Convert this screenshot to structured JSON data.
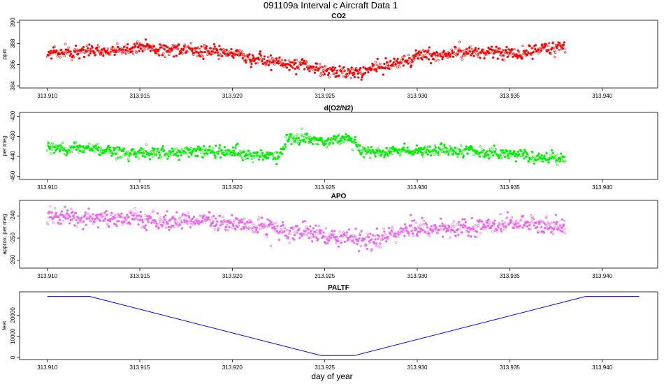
{
  "title": "091109a   Interval c Aircraft Data 1",
  "xlabel": "day of year",
  "chart_data": [
    {
      "type": "scatter",
      "title": "CO2",
      "ylabel": "ppm",
      "xlim": [
        313.9085,
        313.943
      ],
      "ylim": [
        383.8,
        390.2
      ],
      "xticks": [
        313.91,
        313.915,
        313.92,
        313.925,
        313.93,
        313.935,
        313.94
      ],
      "xtick_labels": [
        "313.910",
        "313.915",
        "313.920",
        "313.925",
        "313.930",
        "313.935",
        "313.940"
      ],
      "yticks": [
        384,
        386,
        388,
        390
      ],
      "ytick_labels": [
        "384",
        "386",
        "388",
        "390"
      ],
      "color": "#ff0000",
      "series": [
        {
          "x_range": [
            313.91,
            313.938
          ],
          "n_points": 1000,
          "trend_x": [
            313.91,
            313.913,
            313.9155,
            313.918,
            313.92,
            313.922,
            313.9245,
            313.9265,
            313.928,
            313.93,
            313.932,
            313.9355,
            313.938
          ],
          "trend_y": [
            387.0,
            387.3,
            387.6,
            387.3,
            387.0,
            386.4,
            385.5,
            385.3,
            385.7,
            386.8,
            387.2,
            387.1,
            387.6
          ],
          "scatter": 0.45
        }
      ]
    },
    {
      "type": "scatter",
      "title": "d(O2/N2)",
      "ylabel": "per meg",
      "xlim": [
        313.9085,
        313.943
      ],
      "ylim": [
        -451.5,
        -418
      ],
      "xticks": [
        313.91,
        313.915,
        313.92,
        313.925,
        313.93,
        313.935,
        313.94
      ],
      "xtick_labels": [
        "313.910",
        "313.915",
        "313.920",
        "313.925",
        "313.930",
        "313.935",
        "313.940"
      ],
      "yticks": [
        -450,
        -440,
        -430,
        -420
      ],
      "ytick_labels": [
        "-450",
        "-440",
        "-430",
        "-420"
      ],
      "color": "#00ee00",
      "series": [
        {
          "x_range": [
            313.91,
            313.938
          ],
          "n_points": 1000,
          "trend_x": [
            313.91,
            313.913,
            313.9155,
            313.918,
            313.921,
            313.9225,
            313.923,
            313.925,
            313.9265,
            313.927,
            313.93,
            313.9335,
            313.936,
            313.938
          ],
          "trend_y": [
            -435,
            -437,
            -439,
            -437,
            -439,
            -440,
            -431,
            -432,
            -431,
            -438,
            -437,
            -438,
            -440,
            -442
          ],
          "scatter": 2.2
        }
      ]
    },
    {
      "type": "scatter",
      "title": "APO",
      "ylabel": "approx. per meg",
      "xlim": [
        313.9085,
        313.943
      ],
      "ylim": [
        -263.5,
        -233
      ],
      "xticks": [
        313.91,
        313.915,
        313.92,
        313.925,
        313.93,
        313.935,
        313.94
      ],
      "xtick_labels": [
        "313.910",
        "313.915",
        "313.920",
        "313.925",
        "313.930",
        "313.935",
        "313.940"
      ],
      "yticks": [
        -260,
        -250,
        -240
      ],
      "ytick_labels": [
        "-260",
        "-250",
        "-240"
      ],
      "color": "#ee66ee",
      "series": [
        {
          "x_range": [
            313.91,
            313.938
          ],
          "n_points": 1000,
          "trend_x": [
            313.91,
            313.913,
            313.917,
            313.92,
            313.923,
            313.9255,
            313.9275,
            313.93,
            313.933,
            313.935,
            313.938
          ],
          "trend_y": [
            -240,
            -241,
            -242,
            -243,
            -246,
            -249,
            -252,
            -245,
            -245,
            -243,
            -245
          ],
          "scatter": 3.0
        }
      ]
    },
    {
      "type": "line",
      "title": "PALTF",
      "ylabel": "feet",
      "xlim": [
        313.9085,
        313.943
      ],
      "ylim": [
        -1000,
        31000
      ],
      "xticks": [
        313.91,
        313.915,
        313.92,
        313.925,
        313.93,
        313.935,
        313.94
      ],
      "xtick_labels": [
        "313.910",
        "313.915",
        "313.920",
        "313.925",
        "313.930",
        "313.935",
        "313.940"
      ],
      "yticks": [
        0,
        10000,
        20000
      ],
      "ytick_labels": [
        "0",
        "10000",
        "20000"
      ],
      "color": "#0000ff",
      "series": [
        {
          "x": [
            313.91,
            313.9123,
            313.9248,
            313.9266,
            313.9391,
            313.942
          ],
          "y": [
            28800,
            28800,
            900,
            900,
            28800,
            28800
          ]
        }
      ]
    }
  ]
}
